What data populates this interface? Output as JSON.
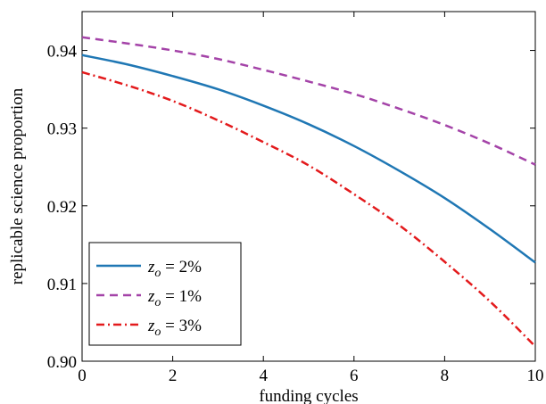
{
  "chart_data": {
    "type": "line",
    "title": "",
    "xlabel": "funding cycles",
    "ylabel": "replicable science proportion",
    "xlim": [
      0,
      10
    ],
    "ylim": [
      0.9,
      0.945
    ],
    "xticks": [
      0,
      2,
      4,
      6,
      8,
      10
    ],
    "xtick_labels": [
      "0",
      "2",
      "4",
      "6",
      "8",
      "10"
    ],
    "yticks": [
      0.9,
      0.91,
      0.92,
      0.93,
      0.94
    ],
    "ytick_labels": [
      "0.90",
      "0.91",
      "0.92",
      "0.93",
      "0.94"
    ],
    "grid": false,
    "legend_position": "bottom-left",
    "x": [
      0,
      1,
      2,
      3,
      4,
      5,
      6,
      7,
      8,
      9,
      10
    ],
    "series": [
      {
        "name": "z_o = 2%",
        "label_var": "z",
        "label_sub": "o",
        "label_rest": " = 2%",
        "color": "#1f77b4",
        "dash": "solid",
        "values": [
          0.9394,
          0.9382,
          0.9367,
          0.935,
          0.9329,
          0.9305,
          0.9277,
          0.9245,
          0.921,
          0.917,
          0.9127
        ]
      },
      {
        "name": "z_o = 1%",
        "label_var": "z",
        "label_sub": "o",
        "label_rest": " = 1%",
        "color": "#a443a8",
        "dash": "dashed",
        "values": [
          0.9417,
          0.9409,
          0.94,
          0.9389,
          0.9375,
          0.936,
          0.9344,
          0.9325,
          0.9304,
          0.928,
          0.9253
        ]
      },
      {
        "name": "z_o = 3%",
        "label_var": "z",
        "label_sub": "o",
        "label_rest": " = 3%",
        "color": "#e31a1c",
        "dash": "dashdot",
        "values": [
          0.9372,
          0.9355,
          0.9335,
          0.931,
          0.9282,
          0.9252,
          0.9215,
          0.9175,
          0.9128,
          0.9077,
          0.9019
        ]
      }
    ]
  }
}
